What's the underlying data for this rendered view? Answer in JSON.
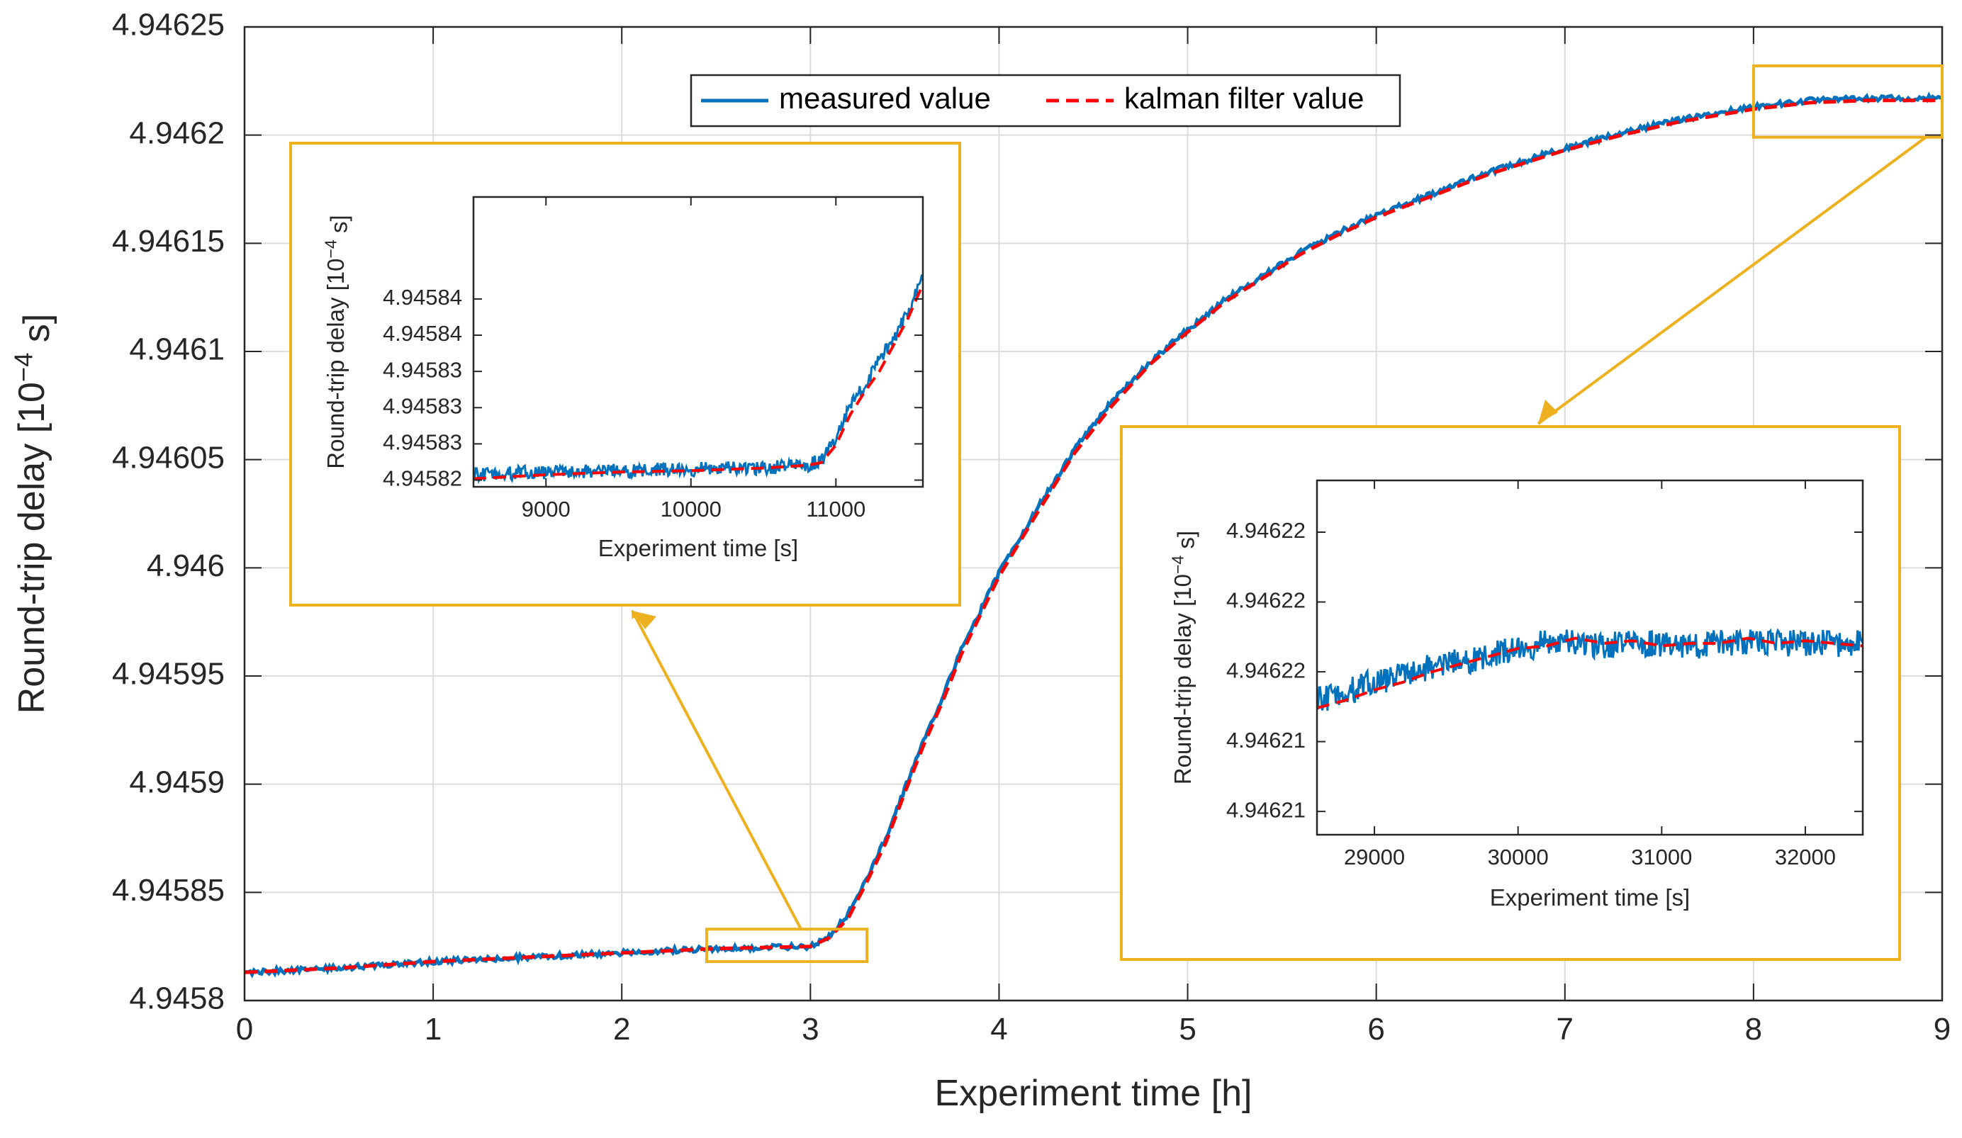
{
  "chart_data": [
    {
      "id": "main",
      "type": "line",
      "xlabel": "Experiment time [h]",
      "ylabel": "Round-trip delay [10",
      "ylabel_exp": "−4",
      "ylabel_unit": " s]",
      "xlim": [
        0,
        9
      ],
      "ylim": [
        4.9458,
        4.94625
      ],
      "xticks": [
        0,
        1,
        2,
        3,
        4,
        5,
        6,
        7,
        8,
        9
      ],
      "xticklabels": [
        "0",
        "1",
        "2",
        "3",
        "4",
        "5",
        "6",
        "7",
        "8",
        "9"
      ],
      "yticks": [
        4.9458,
        4.94585,
        4.9459,
        4.94595,
        4.946,
        4.94605,
        4.9461,
        4.94615,
        4.9462,
        4.94625
      ],
      "yticklabels": [
        "4.9458",
        "4.94585",
        "4.9459",
        "4.94595",
        "4.946",
        "4.94605",
        "4.9461",
        "4.94615",
        "4.9462",
        "4.94625"
      ],
      "grid": true,
      "legend": "top-center",
      "series": [
        {
          "name": "measured value",
          "style": "solid",
          "color": "#0072BD",
          "x": [
            0,
            0.5,
            1,
            1.5,
            2,
            2.5,
            3,
            3.1,
            3.2,
            3.3,
            3.4,
            3.5,
            3.6,
            3.7,
            3.8,
            3.9,
            4,
            4.2,
            4.4,
            4.6,
            4.8,
            5,
            5.2,
            5.4,
            5.6,
            5.8,
            6,
            6.3,
            6.6,
            7,
            7.3,
            7.6,
            8,
            8.3,
            8.6,
            9
          ],
          "y": [
            4.945813,
            4.945815,
            4.945818,
            4.94582,
            4.945822,
            4.945824,
            4.945825,
            4.94583,
            4.94584,
            4.945857,
            4.945875,
            4.945898,
            4.94592,
            4.94594,
            4.945962,
            4.94598,
            4.945998,
            4.946027,
            4.946055,
            4.946077,
            4.946095,
            4.94611,
            4.946124,
            4.946135,
            4.946146,
            4.946155,
            4.946163,
            4.946173,
            4.946183,
            4.946194,
            4.946201,
            4.946207,
            4.946213,
            4.946216,
            4.946217,
            4.946217
          ]
        },
        {
          "name": "kalman filter value",
          "style": "dashed",
          "color": "#FF0000",
          "x": [
            0,
            0.5,
            1,
            1.5,
            2,
            2.5,
            3,
            3.1,
            3.2,
            3.3,
            3.4,
            3.5,
            3.6,
            3.7,
            3.8,
            3.9,
            4,
            4.2,
            4.4,
            4.6,
            4.8,
            5,
            5.2,
            5.4,
            5.6,
            5.8,
            6,
            6.3,
            6.6,
            7,
            7.3,
            7.6,
            8,
            8.3,
            8.6,
            9
          ],
          "y": [
            4.945813,
            4.945815,
            4.945818,
            4.94582,
            4.945822,
            4.945824,
            4.945825,
            4.945829,
            4.945838,
            4.945855,
            4.945873,
            4.945896,
            4.945918,
            4.945938,
            4.94596,
            4.945978,
            4.945996,
            4.946025,
            4.946053,
            4.946075,
            4.946094,
            4.946109,
            4.946123,
            4.946134,
            4.946145,
            4.946154,
            4.946162,
            4.946172,
            4.946182,
            4.946193,
            4.9462,
            4.946206,
            4.946212,
            4.946215,
            4.946216,
            4.946216
          ]
        }
      ],
      "zoom_boxes": [
        {
          "x": [
            2.45,
            3.3
          ],
          "y": [
            4.945818,
            4.945833
          ]
        },
        {
          "x": [
            8.0,
            9.0
          ],
          "y": [
            4.946199,
            4.946232
          ]
        }
      ]
    },
    {
      "id": "inset1",
      "type": "line",
      "xlabel": "Experiment time [s]",
      "ylabel": "Round-trip delay [10",
      "ylabel_exp": "−4",
      "ylabel_unit": " s]",
      "xlim": [
        8500,
        11600
      ],
      "ylim": [
        4.9458244,
        4.945846
      ],
      "xticks": [
        9000,
        10000,
        11000
      ],
      "xticklabels": [
        "9000",
        "10000",
        "11000"
      ],
      "yticks": [
        4.9458249,
        4.9458276,
        4.9458303,
        4.945833,
        4.9458357,
        4.9458384
      ],
      "yticklabels": [
        "4.94582",
        "4.94583",
        "4.94583",
        "4.94583",
        "4.94584",
        "4.94584"
      ],
      "grid": false,
      "series": [
        {
          "name": "measured value",
          "style": "solid",
          "color": "#0072BD",
          "x": [
            8500,
            9000,
            9500,
            10000,
            10500,
            10800,
            10900,
            11000,
            11100,
            11200,
            11300,
            11400,
            11500,
            11600
          ],
          "y": [
            4.9458253,
            4.9458255,
            4.9458256,
            4.9458257,
            4.9458258,
            4.945826,
            4.9458264,
            4.945828,
            4.9458305,
            4.945832,
            4.9458338,
            4.9458355,
            4.9458375,
            4.94584
          ]
        },
        {
          "name": "kalman filter value",
          "style": "dashed",
          "color": "#FF0000",
          "x": [
            8500,
            9000,
            9500,
            10000,
            10500,
            10800,
            10900,
            11000,
            11100,
            11200,
            11300,
            11400,
            11500,
            11600
          ],
          "y": [
            4.945825,
            4.9458253,
            4.9458255,
            4.9458256,
            4.9458258,
            4.945826,
            4.9458262,
            4.9458275,
            4.9458298,
            4.9458315,
            4.945833,
            4.945835,
            4.945837,
            4.9458395
          ]
        }
      ]
    },
    {
      "id": "inset2",
      "type": "line",
      "xlabel": "Experiment time [s]",
      "ylabel": "Round-trip delay [10",
      "ylabel_exp": "−4",
      "ylabel_unit": " s]",
      "xlim": [
        28600,
        32400
      ],
      "ylim": [
        4.9462103,
        4.946224
      ],
      "xticks": [
        29000,
        30000,
        31000,
        32000
      ],
      "xticklabels": [
        "29000",
        "30000",
        "31000",
        "32000"
      ],
      "yticks": [
        4.9462112,
        4.9462139,
        4.9462166,
        4.9462193,
        4.946222
      ],
      "yticklabels": [
        "4.94621",
        "4.94621",
        "4.94622",
        "4.94622",
        "4.94622"
      ],
      "grid": false,
      "series": [
        {
          "name": "measured value",
          "style": "solid",
          "color": "#0072BD",
          "x": [
            28600,
            28800,
            29000,
            29200,
            29400,
            29600,
            29800,
            30000,
            30200,
            30400,
            30600,
            30800,
            31000,
            31200,
            31400,
            31600,
            31800,
            32000,
            32200,
            32400
          ],
          "y": [
            4.9462155,
            4.9462158,
            4.9462162,
            4.9462165,
            4.9462168,
            4.946217,
            4.9462172,
            4.9462175,
            4.9462177,
            4.9462177,
            4.9462176,
            4.9462177,
            4.9462177,
            4.9462176,
            4.9462177,
            4.9462178,
            4.9462177,
            4.9462177,
            4.9462177,
            4.9462177
          ]
        },
        {
          "name": "kalman filter value",
          "style": "dashed",
          "color": "#FF0000",
          "x": [
            28600,
            28800,
            29000,
            29200,
            29400,
            29600,
            29800,
            30000,
            30200,
            30400,
            30600,
            30800,
            31000,
            31200,
            31400,
            31600,
            31800,
            32000,
            32200,
            32400
          ],
          "y": [
            4.9462152,
            4.9462155,
            4.9462159,
            4.9462162,
            4.9462166,
            4.9462169,
            4.9462172,
            4.9462175,
            4.9462176,
            4.9462179,
            4.9462177,
            4.9462178,
            4.9462176,
            4.9462177,
            4.9462177,
            4.9462179,
            4.9462177,
            4.9462178,
            4.9462177,
            4.9462176
          ]
        }
      ]
    }
  ],
  "legend": {
    "items": [
      {
        "label": "measured value",
        "color": "#0072BD",
        "style": "solid"
      },
      {
        "label": "kalman filter value",
        "color": "#FF0000",
        "style": "dashed"
      }
    ]
  },
  "colors": {
    "zoom_box": "#EDB120",
    "grid": "#DCDCDC",
    "axis": "#262626"
  }
}
